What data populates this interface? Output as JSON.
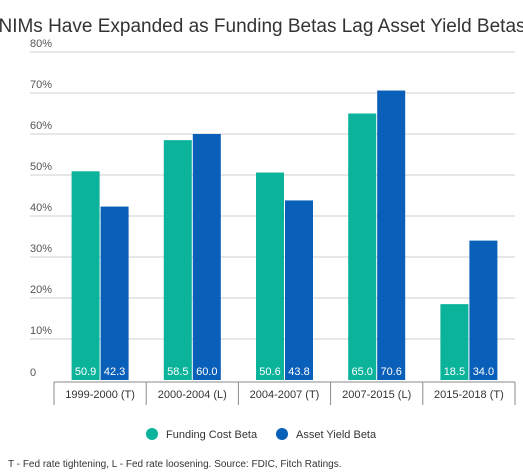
{
  "chart_data": {
    "type": "bar",
    "title": "NIMs Have Expanded as Funding Betas Lag Asset Yield Betas",
    "categories": [
      "1999-2000 (T)",
      "2000-2004 (L)",
      "2004-2007 (T)",
      "2007-2015 (L)",
      "2015-2018 (T)"
    ],
    "series": [
      {
        "name": "Funding Cost Beta",
        "color": "#0bb39a",
        "values": [
          50.9,
          58.5,
          50.6,
          65.0,
          18.5
        ],
        "labels": [
          "50.9",
          "58.5",
          "50.6",
          "65.0",
          "18.5"
        ]
      },
      {
        "name": "Asset Yield Beta",
        "color": "#0a5fb8",
        "values": [
          42.3,
          60.0,
          43.8,
          70.6,
          34.0
        ],
        "labels": [
          "42.3",
          "60.0",
          "43.8",
          "70.6",
          "34.0"
        ]
      }
    ],
    "ylim": [
      0,
      80
    ],
    "yticks": [
      0,
      10,
      20,
      30,
      40,
      50,
      60,
      70,
      80
    ],
    "ytick_labels": [
      "0",
      "10%",
      "20%",
      "30%",
      "40%",
      "50%",
      "60%",
      "70%",
      "80%"
    ],
    "grid": true,
    "legend_position": "bottom-center",
    "footnote": "T - Fed rate tightening, L - Fed rate loosening. Source: FDIC, Fitch Ratings."
  }
}
